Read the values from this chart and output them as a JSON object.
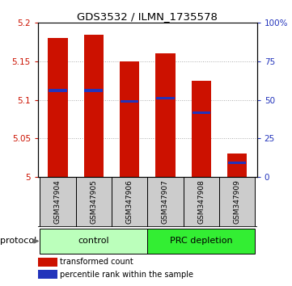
{
  "title": "GDS3532 / ILMN_1735578",
  "samples": [
    "GSM347904",
    "GSM347905",
    "GSM347906",
    "GSM347907",
    "GSM347908",
    "GSM347909"
  ],
  "red_bar_heights": [
    5.18,
    5.185,
    5.15,
    5.16,
    5.125,
    5.03
  ],
  "blue_marker_values": [
    5.112,
    5.112,
    5.098,
    5.102,
    5.083,
    5.018
  ],
  "y_min": 5.0,
  "y_max": 5.2,
  "y_ticks_left": [
    5.0,
    5.05,
    5.1,
    5.15,
    5.2
  ],
  "y_ticks_left_labels": [
    "5",
    "5.05",
    "5.1",
    "5.15",
    "5.2"
  ],
  "y_ticks_right_labels": [
    "0",
    "25",
    "50",
    "75",
    "100%"
  ],
  "y_ticks_right_pct": [
    0,
    25,
    50,
    75,
    100
  ],
  "bar_color": "#cc1100",
  "blue_color": "#2233bb",
  "bar_width": 0.55,
  "groups": [
    {
      "label": "control",
      "indices": [
        0,
        1,
        2
      ],
      "color": "#bbffbb"
    },
    {
      "label": "PRC depletion",
      "indices": [
        3,
        4,
        5
      ],
      "color": "#33ee33"
    }
  ],
  "protocol_label": "protocol",
  "legend_red_label": "transformed count",
  "legend_blue_label": "percentile rank within the sample",
  "label_color_left": "#cc1100",
  "label_color_right": "#2233bb",
  "sample_box_color": "#cccccc",
  "title_fontsize": 9.5,
  "tick_fontsize": 7.5,
  "sample_fontsize": 6.5,
  "legend_fontsize": 7,
  "protocol_fontsize": 8
}
